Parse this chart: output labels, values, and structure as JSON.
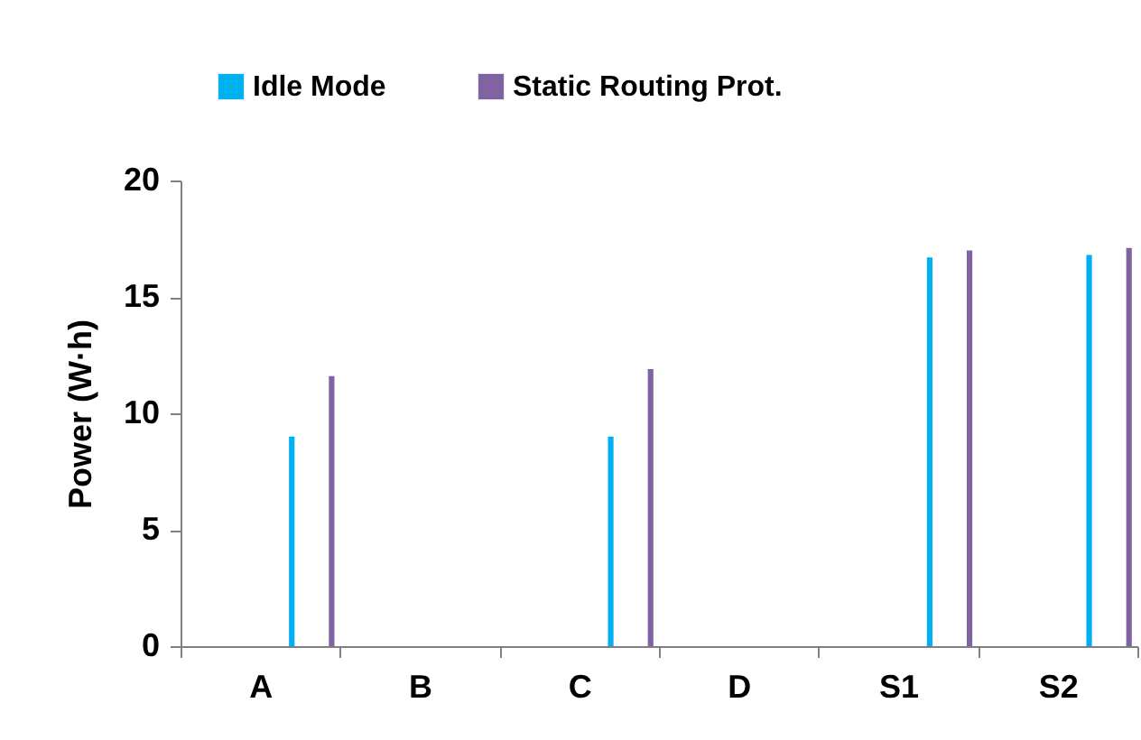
{
  "chart_data": {
    "type": "bar",
    "ylabel": "Power (W·h)",
    "categories": [
      "A",
      "B",
      "C",
      "D",
      "S1",
      "S2"
    ],
    "series": [
      {
        "name": "Idle Mode",
        "color": "#00b0f0",
        "values": [
          9.0,
          0,
          9.0,
          0,
          16.7,
          16.8
        ]
      },
      {
        "name": "Static Routing Prot.",
        "color": "#8064a2",
        "values": [
          11.6,
          0,
          11.9,
          0,
          17.0,
          17.1
        ]
      }
    ],
    "ylim": [
      0,
      20
    ],
    "yticks": [
      0,
      5,
      10,
      15,
      20
    ],
    "grid": false,
    "legend": "top left"
  }
}
